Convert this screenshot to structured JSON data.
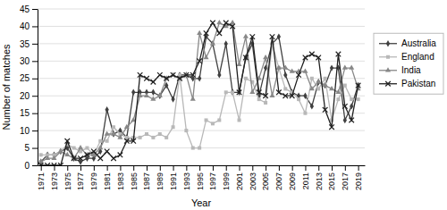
{
  "chart_data": {
    "type": "line",
    "xlabel": "Year",
    "ylabel": "Number of matches",
    "x": [
      1971,
      1972,
      1973,
      1974,
      1975,
      1976,
      1977,
      1978,
      1979,
      1980,
      1981,
      1982,
      1983,
      1984,
      1985,
      1986,
      1987,
      1988,
      1989,
      1990,
      1991,
      1992,
      1993,
      1994,
      1995,
      1996,
      1997,
      1998,
      1999,
      2000,
      2001,
      2002,
      2003,
      2004,
      2005,
      2006,
      2007,
      2008,
      2009,
      2010,
      2011,
      2012,
      2013,
      2014,
      2015,
      2016,
      2017,
      2018,
      2019
    ],
    "series": [
      {
        "name": "Australia",
        "color": "#404040",
        "marker": "diamond",
        "values": [
          1,
          3,
          3,
          4,
          5,
          2,
          1,
          2,
          2,
          4,
          16,
          9,
          10,
          8,
          21,
          21,
          21,
          21,
          20,
          23,
          19,
          26,
          26,
          25,
          25,
          37,
          35,
          26,
          35,
          21,
          21,
          31,
          35,
          20,
          28,
          35,
          37,
          26,
          21,
          20,
          20,
          17,
          24,
          23,
          28,
          28,
          13,
          17,
          23
        ]
      },
      {
        "name": "England",
        "color": "#b8b8b8",
        "marker": "square",
        "values": [
          3,
          3,
          3,
          4,
          6,
          5,
          4,
          5,
          3,
          7,
          7,
          11,
          9,
          8,
          8,
          8,
          9,
          8,
          9,
          8,
          11,
          26,
          10,
          5,
          5,
          13,
          12,
          13,
          21,
          21,
          13,
          25,
          24,
          19,
          18,
          35,
          28,
          22,
          21,
          19,
          15,
          25,
          22,
          25,
          13,
          19,
          23,
          19,
          19
        ]
      },
      {
        "name": "India",
        "color": "#888888",
        "marker": "triangle",
        "values": [
          1,
          2,
          2,
          4,
          3,
          2,
          5,
          3,
          3,
          5,
          9,
          9,
          8,
          11,
          13,
          20,
          20,
          19,
          20,
          25,
          26,
          25,
          26,
          19,
          38,
          31,
          35,
          41,
          40,
          41,
          29,
          37,
          21,
          25,
          31,
          20,
          28,
          28,
          27,
          27,
          27,
          22,
          24,
          23,
          22,
          21,
          28,
          28,
          22
        ]
      },
      {
        "name": "Pakistan",
        "color": "#202020",
        "marker": "x",
        "values": [
          0,
          0,
          0,
          0,
          7,
          2,
          2,
          3,
          4,
          2,
          4,
          2,
          3,
          7,
          7,
          26,
          25,
          24,
          26,
          25,
          26,
          25,
          26,
          26,
          30,
          38,
          41,
          38,
          41,
          40,
          21,
          31,
          37,
          21,
          20,
          37,
          21,
          20,
          20,
          26,
          31,
          32,
          31,
          16,
          11,
          32,
          17,
          13,
          23
        ]
      }
    ],
    "xlim": [
      1970.5,
      2020
    ],
    "xticks": [
      1971,
      1973,
      1975,
      1977,
      1979,
      1981,
      1983,
      1985,
      1987,
      1989,
      1991,
      1993,
      1995,
      1997,
      1999,
      2001,
      2003,
      2005,
      2007,
      2009,
      2011,
      2013,
      2015,
      2017,
      2019
    ],
    "ylim": [
      0,
      45
    ],
    "yticks": [
      0,
      5,
      10,
      15,
      20,
      25,
      30,
      35,
      40,
      45
    ],
    "grid": true,
    "legend": "right"
  }
}
